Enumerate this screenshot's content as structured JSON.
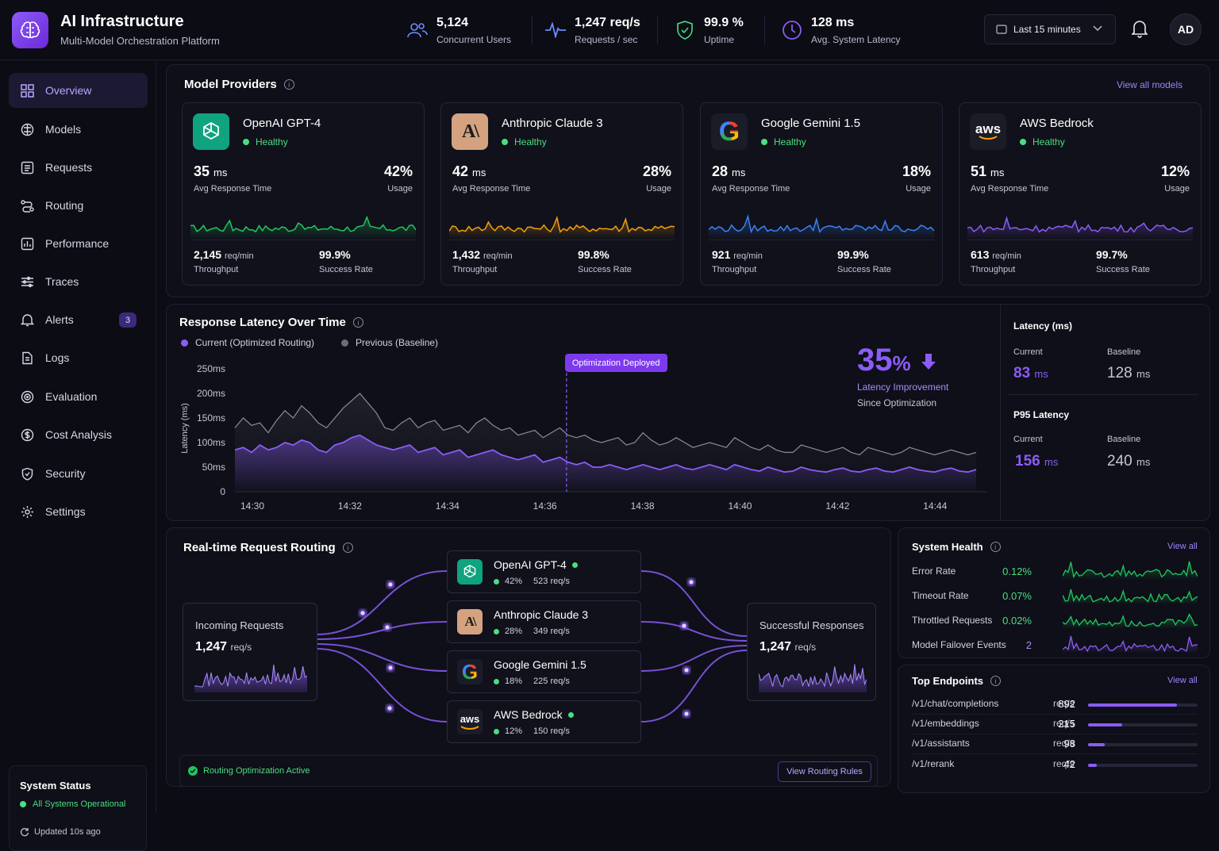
{
  "header": {
    "title": "AI Infrastructure",
    "subtitle": "Multi-Model Orchestration Platform",
    "kpis": [
      {
        "value": "5,124",
        "label": "Concurrent Users",
        "icon": "users-icon"
      },
      {
        "value": "1,247 req/s",
        "label": "Requests / sec",
        "icon": "pulse-icon"
      },
      {
        "value": "99.9 %",
        "label": "Uptime",
        "icon": "shield-check-icon"
      },
      {
        "value": "128 ms",
        "label": "Avg. System Latency",
        "icon": "clock-icon"
      }
    ],
    "time_range": "Last 15 minutes",
    "avatar": "AD"
  },
  "sidebar": {
    "items": [
      {
        "label": "Overview",
        "icon": "grid-icon"
      },
      {
        "label": "Models",
        "icon": "cube-icon"
      },
      {
        "label": "Requests",
        "icon": "list-icon"
      },
      {
        "label": "Routing",
        "icon": "routing-icon"
      },
      {
        "label": "Performance",
        "icon": "bar-chart-icon"
      },
      {
        "label": "Traces",
        "icon": "traces-icon"
      },
      {
        "label": "Alerts",
        "icon": "bell-icon",
        "badge": "3"
      },
      {
        "label": "Logs",
        "icon": "document-icon"
      },
      {
        "label": "Evaluation",
        "icon": "target-icon"
      },
      {
        "label": "Cost Analysis",
        "icon": "dollar-icon"
      },
      {
        "label": "Security",
        "icon": "shield-icon"
      },
      {
        "label": "Settings",
        "icon": "gear-icon"
      }
    ],
    "status": {
      "title": "System Status",
      "state": "All Systems Operational",
      "updated": "Updated 10s ago"
    }
  },
  "providers": {
    "title": "Model Providers",
    "view_all": "View all models",
    "cards": [
      {
        "name": "OpenAI GPT-4",
        "status": "Healthy",
        "resp": "35",
        "resp_unit": "ms",
        "resp_label": "Avg Response Time",
        "usage": "42%",
        "usage_label": "Usage",
        "throughput": "2,145",
        "throughput_unit": "req/min",
        "throughput_label": "Throughput",
        "success": "99.9%",
        "success_label": "Success Rate",
        "color": "#22c55e"
      },
      {
        "name": "Anthropic Claude 3",
        "status": "Healthy",
        "resp": "42",
        "resp_unit": "ms",
        "resp_label": "Avg Response Time",
        "usage": "28%",
        "usage_label": "Usage",
        "throughput": "1,432",
        "throughput_unit": "req/min",
        "throughput_label": "Throughput",
        "success": "99.8%",
        "success_label": "Success Rate",
        "color": "#f59e0b"
      },
      {
        "name": "Google Gemini 1.5",
        "status": "Healthy",
        "resp": "28",
        "resp_unit": "ms",
        "resp_label": "Avg Response Time",
        "usage": "18%",
        "usage_label": "Usage",
        "throughput": "921",
        "throughput_unit": "req/min",
        "throughput_label": "Throughput",
        "success": "99.9%",
        "success_label": "Success Rate",
        "color": "#3b82f6"
      },
      {
        "name": "AWS Bedrock",
        "status": "Healthy",
        "resp": "51",
        "resp_unit": "ms",
        "resp_label": "Avg Response Time",
        "usage": "12%",
        "usage_label": "Usage",
        "throughput": "613",
        "throughput_unit": "req/min",
        "throughput_label": "Throughput",
        "success": "99.7%",
        "success_label": "Success Rate",
        "color": "#8b5cf6"
      }
    ]
  },
  "latency": {
    "title": "Response Latency Over Time",
    "legend_current": "Current (Optimized Routing)",
    "legend_previous": "Previous (Baseline)",
    "annotation": "Optimization Deployed",
    "improvement_value": "35",
    "improvement_unit": "%",
    "improvement_label": "Latency Improvement",
    "improvement_sub": "Since Optimization",
    "side": {
      "latency_title": "Latency (ms)",
      "p95_title": "P95 Latency",
      "current_label": "Current",
      "baseline_label": "Baseline",
      "latency_current": "83",
      "latency_baseline": "128",
      "p95_current": "156",
      "p95_baseline": "240",
      "unit": "ms"
    }
  },
  "chart_data": {
    "type": "line",
    "ylabel": "Latency (ms)",
    "ylim": [
      0,
      250
    ],
    "y_ticks": [
      "250ms",
      "200ms",
      "150ms",
      "100ms",
      "50ms",
      "0"
    ],
    "x_ticks": [
      "14:30",
      "14:32",
      "14:34",
      "14:36",
      "14:38",
      "14:40",
      "14:42",
      "14:44"
    ],
    "x_start_min": 0,
    "x_end_min": 15.2,
    "annotation_min": 6.8,
    "series": [
      {
        "name": "Previous (Baseline)",
        "color": "#8a8c9a",
        "values": [
          130,
          150,
          135,
          140,
          120,
          145,
          165,
          150,
          175,
          160,
          140,
          130,
          150,
          170,
          185,
          200,
          180,
          160,
          130,
          125,
          140,
          150,
          130,
          140,
          145,
          125,
          130,
          135,
          120,
          140,
          150,
          135,
          125,
          130,
          115,
          120,
          125,
          110,
          120,
          130,
          115,
          110,
          115,
          105,
          100,
          105,
          110,
          95,
          100,
          120,
          105,
          95,
          100,
          110,
          100,
          90,
          95,
          100,
          95,
          90,
          110,
          100,
          90,
          85,
          95,
          85,
          80,
          80,
          95,
          90,
          85,
          80,
          85,
          90,
          80,
          75,
          90,
          85,
          80,
          75,
          80,
          90,
          85,
          80,
          75,
          80,
          85,
          80,
          75,
          80
        ]
      },
      {
        "name": "Current (Optimized Routing)",
        "color": "#8b5cf6",
        "values": [
          85,
          90,
          80,
          95,
          85,
          90,
          100,
          95,
          105,
          100,
          85,
          80,
          95,
          100,
          110,
          115,
          105,
          95,
          90,
          85,
          90,
          95,
          80,
          85,
          90,
          75,
          80,
          85,
          70,
          75,
          80,
          85,
          75,
          70,
          65,
          70,
          75,
          60,
          65,
          70,
          60,
          55,
          60,
          50,
          50,
          55,
          50,
          45,
          50,
          55,
          50,
          45,
          50,
          55,
          48,
          45,
          50,
          55,
          50,
          45,
          55,
          50,
          45,
          42,
          50,
          45,
          40,
          42,
          50,
          45,
          42,
          40,
          45,
          48,
          42,
          40,
          45,
          48,
          42,
          40,
          45,
          50,
          45,
          42,
          40,
          45,
          48,
          42,
          40,
          45
        ]
      }
    ]
  },
  "routing": {
    "title": "Real-time Request Routing",
    "incoming_label": "Incoming Requests",
    "incoming_value": "1,247",
    "incoming_unit": "req/s",
    "success_label": "Successful Responses",
    "success_value": "1,247",
    "success_unit": "req/s",
    "nodes": [
      {
        "name": "OpenAI GPT-4",
        "pct": "42%",
        "rate": "523 req/s"
      },
      {
        "name": "Anthropic Claude 3",
        "pct": "28%",
        "rate": "349 req/s"
      },
      {
        "name": "Google Gemini 1.5",
        "pct": "18%",
        "rate": "225 req/s"
      },
      {
        "name": "AWS Bedrock",
        "pct": "12%",
        "rate": "150 req/s"
      }
    ],
    "status": "Routing Optimization Active",
    "rules_button": "View Routing Rules"
  },
  "health": {
    "title": "System Health",
    "view_all": "View all",
    "rows": [
      {
        "label": "Error Rate",
        "value": "0.12%",
        "color": "#22c55e"
      },
      {
        "label": "Timeout Rate",
        "value": "0.07%",
        "color": "#22c55e"
      },
      {
        "label": "Throttled Requests",
        "value": "0.02%",
        "color": "#22c55e"
      },
      {
        "label": "Model Failover Events",
        "value": "2",
        "color": "#8b5cf6"
      }
    ]
  },
  "endpoints": {
    "title": "Top Endpoints",
    "view_all": "View all",
    "unit": "req/s",
    "rows": [
      {
        "path": "/v1/chat/completions",
        "value": "892",
        "share": 0.81
      },
      {
        "path": "/v1/embeddings",
        "value": "215",
        "share": 0.31
      },
      {
        "path": "/v1/assistants",
        "value": "98",
        "share": 0.15
      },
      {
        "path": "/v1/rerank",
        "value": "42",
        "share": 0.08
      }
    ]
  }
}
